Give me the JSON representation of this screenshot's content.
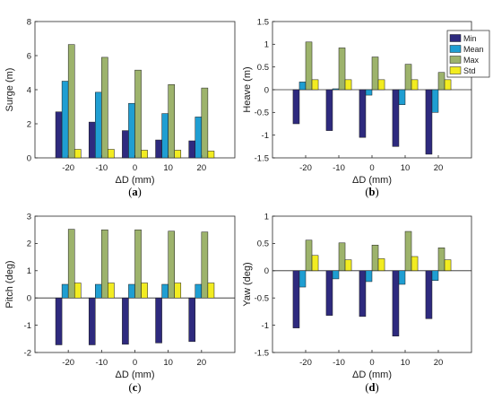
{
  "colors": {
    "Min": "#2e2a7e",
    "Mean": "#1f9ed2",
    "Max": "#9db36c",
    "Std": "#f2ec21"
  },
  "legend": {
    "items": [
      "Min",
      "Mean",
      "Max",
      "Std"
    ],
    "placement": "right of top-right panel"
  },
  "chart_data": [
    {
      "type": "bar",
      "panel_label": "a",
      "categories": [
        "-20",
        "-10",
        "0",
        "10",
        "20"
      ],
      "xlabel": "ΔD (mm)",
      "ylabel": "Surge (m)",
      "ylim": [
        0,
        8
      ],
      "yticks": [
        "0",
        "2",
        "4",
        "6",
        "8"
      ],
      "series": [
        {
          "name": "Min",
          "values": [
            2.7,
            2.1,
            1.6,
            1.05,
            1.0
          ]
        },
        {
          "name": "Mean",
          "values": [
            4.5,
            3.85,
            3.2,
            2.6,
            2.4
          ]
        },
        {
          "name": "Max",
          "values": [
            6.65,
            5.9,
            5.15,
            4.3,
            4.1
          ]
        },
        {
          "name": "Std",
          "values": [
            0.5,
            0.5,
            0.45,
            0.45,
            0.4
          ]
        }
      ]
    },
    {
      "type": "bar",
      "panel_label": "b",
      "categories": [
        "-20",
        "-10",
        "0",
        "10",
        "20"
      ],
      "xlabel": "ΔD (mm)",
      "ylabel": "Heave (m)",
      "ylim": [
        -1.5,
        1.5
      ],
      "yticks": [
        "-1.5",
        "-1",
        "-0.5",
        "0",
        "0.5",
        "1",
        "1.5"
      ],
      "series": [
        {
          "name": "Min",
          "values": [
            -0.75,
            -0.9,
            -1.05,
            -1.25,
            -1.42
          ]
        },
        {
          "name": "Mean",
          "values": [
            0.17,
            0.02,
            -0.12,
            -0.33,
            -0.5
          ]
        },
        {
          "name": "Max",
          "values": [
            1.05,
            0.92,
            0.72,
            0.56,
            0.38
          ]
        },
        {
          "name": "Std",
          "values": [
            0.22,
            0.22,
            0.22,
            0.22,
            0.22
          ]
        }
      ]
    },
    {
      "type": "bar",
      "panel_label": "c",
      "categories": [
        "-20",
        "-10",
        "0",
        "10",
        "20"
      ],
      "xlabel": "ΔD (mm)",
      "ylabel": "Pitch (deg)",
      "ylim": [
        -2,
        3
      ],
      "yticks": [
        "-2",
        "-1",
        "0",
        "1",
        "2",
        "3"
      ],
      "series": [
        {
          "name": "Min",
          "values": [
            -1.72,
            -1.72,
            -1.7,
            -1.65,
            -1.6
          ]
        },
        {
          "name": "Mean",
          "values": [
            0.5,
            0.5,
            0.5,
            0.5,
            0.5
          ]
        },
        {
          "name": "Max",
          "values": [
            2.52,
            2.5,
            2.5,
            2.45,
            2.42
          ]
        },
        {
          "name": "Std",
          "values": [
            0.55,
            0.55,
            0.55,
            0.55,
            0.55
          ]
        }
      ]
    },
    {
      "type": "bar",
      "panel_label": "d",
      "categories": [
        "-20",
        "-10",
        "0",
        "10",
        "20"
      ],
      "xlabel": "ΔD (mm)",
      "ylabel": "Yaw (deg)",
      "ylim": [
        -1.5,
        1
      ],
      "yticks": [
        "-1.5",
        "-1",
        "-0.5",
        "0",
        "0.5",
        "1"
      ],
      "series": [
        {
          "name": "Min",
          "values": [
            -1.05,
            -0.82,
            -0.84,
            -1.2,
            -0.88
          ]
        },
        {
          "name": "Mean",
          "values": [
            -0.3,
            -0.15,
            -0.2,
            -0.25,
            -0.18
          ]
        },
        {
          "name": "Max",
          "values": [
            0.56,
            0.51,
            0.47,
            0.72,
            0.42
          ]
        },
        {
          "name": "Std",
          "values": [
            0.28,
            0.2,
            0.22,
            0.26,
            0.2
          ]
        }
      ]
    }
  ]
}
